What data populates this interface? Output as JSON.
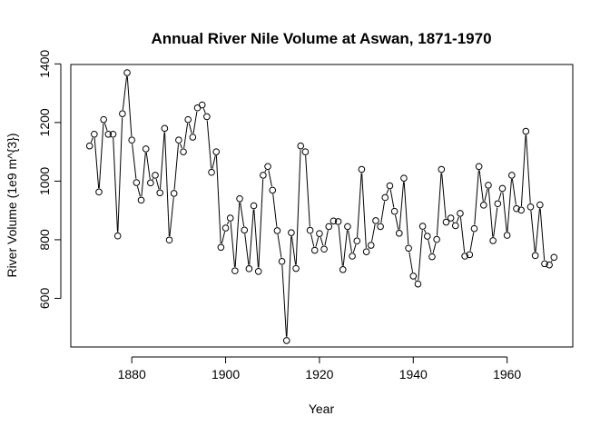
{
  "chart_data": {
    "type": "line",
    "title": "Annual River Nile Volume at Aswan, 1871-1970",
    "xlabel": "Year",
    "ylabel": "River Volume (1e9 m^{3})",
    "xlim": [
      1867,
      1974
    ],
    "ylim": [
      434,
      1398
    ],
    "x_ticks": [
      1880,
      1900,
      1920,
      1940,
      1960
    ],
    "y_ticks": [
      600,
      800,
      1000,
      1200,
      1400
    ],
    "grid": false,
    "marker": "open-circle",
    "line_style": "solid-gapped",
    "series": [
      {
        "name": "",
        "x": [
          1871,
          1872,
          1873,
          1874,
          1875,
          1876,
          1877,
          1878,
          1879,
          1880,
          1881,
          1882,
          1883,
          1884,
          1885,
          1886,
          1887,
          1888,
          1889,
          1890,
          1891,
          1892,
          1893,
          1894,
          1895,
          1896,
          1897,
          1898,
          1899,
          1900,
          1901,
          1902,
          1903,
          1904,
          1905,
          1906,
          1907,
          1908,
          1909,
          1910,
          1911,
          1912,
          1913,
          1914,
          1915,
          1916,
          1917,
          1918,
          1919,
          1920,
          1921,
          1922,
          1923,
          1924,
          1925,
          1926,
          1927,
          1928,
          1929,
          1930,
          1931,
          1932,
          1933,
          1934,
          1935,
          1936,
          1937,
          1938,
          1939,
          1940,
          1941,
          1942,
          1943,
          1944,
          1945,
          1946,
          1947,
          1948,
          1949,
          1950,
          1951,
          1952,
          1953,
          1954,
          1955,
          1956,
          1957,
          1958,
          1959,
          1960,
          1961,
          1962,
          1963,
          1964,
          1965,
          1966,
          1967,
          1968,
          1969,
          1970
        ],
        "values": [
          1120,
          1160,
          963,
          1210,
          1160,
          1160,
          813,
          1230,
          1370,
          1140,
          995,
          935,
          1110,
          994,
          1020,
          960,
          1180,
          799,
          958,
          1140,
          1100,
          1210,
          1150,
          1250,
          1260,
          1220,
          1030,
          1100,
          774,
          840,
          874,
          694,
          940,
          833,
          701,
          916,
          692,
          1020,
          1050,
          969,
          831,
          726,
          456,
          824,
          702,
          1120,
          1100,
          832,
          764,
          821,
          768,
          845,
          864,
          862,
          698,
          845,
          744,
          796,
          1040,
          759,
          781,
          865,
          845,
          944,
          984,
          897,
          822,
          1010,
          771,
          676,
          649,
          846,
          812,
          742,
          801,
          1040,
          860,
          874,
          848,
          890,
          744,
          749,
          838,
          1050,
          918,
          986,
          797,
          923,
          975,
          815,
          1020,
          906,
          901,
          1170,
          912,
          746,
          919,
          718,
          714,
          740
        ]
      }
    ]
  }
}
